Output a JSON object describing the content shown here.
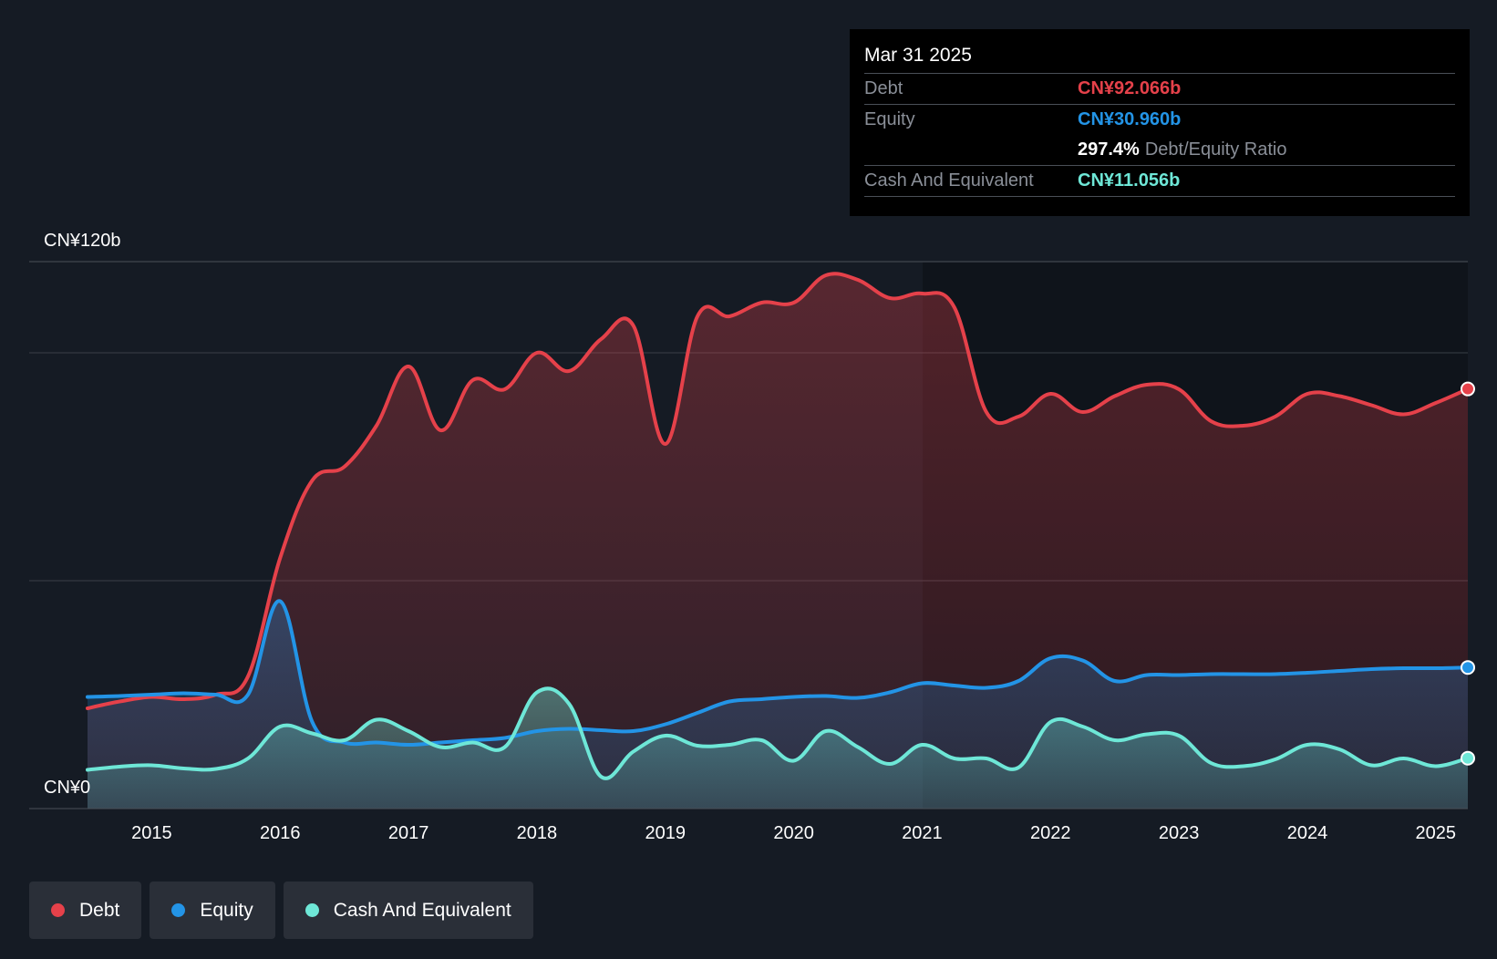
{
  "colors": {
    "debt": "#e5414a",
    "equity": "#2394e6",
    "cash": "#6ee7d7",
    "background": "#151b24",
    "grid": "#3a3f47"
  },
  "tooltip": {
    "date": "Mar 31 2025",
    "debt_label": "Debt",
    "debt_value": "CN¥92.066b",
    "equity_label": "Equity",
    "equity_value": "CN¥30.960b",
    "ratio_value": "297.4%",
    "ratio_label": "Debt/Equity Ratio",
    "cash_label": "Cash And Equivalent",
    "cash_value": "CN¥11.056b"
  },
  "legend": {
    "debt": "Debt",
    "equity": "Equity",
    "cash": "Cash And Equivalent"
  },
  "chart_data": {
    "type": "area",
    "title": "",
    "y_top_label": "CN¥120b",
    "y_bottom_label": "CN¥0",
    "ylim": [
      0,
      120
    ],
    "xlim": [
      2014.5,
      2025.25
    ],
    "x_ticks": [
      2015,
      2016,
      2017,
      2018,
      2019,
      2020,
      2021,
      2022,
      2023,
      2024,
      2025
    ],
    "x_tick_labels": [
      "2015",
      "2016",
      "2017",
      "2018",
      "2019",
      "2020",
      "2021",
      "2022",
      "2023",
      "2024",
      "2025"
    ],
    "gridlines": [
      120,
      100,
      50
    ],
    "series": [
      {
        "name": "Debt",
        "key": "debt",
        "points": [
          [
            2014.5,
            22.0
          ],
          [
            2014.75,
            23.5
          ],
          [
            2015.0,
            24.5
          ],
          [
            2015.25,
            24.0
          ],
          [
            2015.5,
            25.0
          ],
          [
            2015.75,
            29.0
          ],
          [
            2016.0,
            55.0
          ],
          [
            2016.25,
            72.0
          ],
          [
            2016.5,
            75.0
          ],
          [
            2016.75,
            84.0
          ],
          [
            2017.0,
            97.0
          ],
          [
            2017.25,
            83.0
          ],
          [
            2017.5,
            94.0
          ],
          [
            2017.75,
            92.0
          ],
          [
            2018.0,
            100.0
          ],
          [
            2018.25,
            96.0
          ],
          [
            2018.5,
            103.0
          ],
          [
            2018.75,
            106.0
          ],
          [
            2019.0,
            80.0
          ],
          [
            2019.25,
            108.0
          ],
          [
            2019.5,
            108.0
          ],
          [
            2019.75,
            111.0
          ],
          [
            2020.0,
            111.0
          ],
          [
            2020.25,
            117.0
          ],
          [
            2020.5,
            116.0
          ],
          [
            2020.75,
            112.0
          ],
          [
            2021.0,
            113.0
          ],
          [
            2021.25,
            110.0
          ],
          [
            2021.5,
            87.0
          ],
          [
            2021.75,
            86.0
          ],
          [
            2022.0,
            91.0
          ],
          [
            2022.25,
            87.0
          ],
          [
            2022.5,
            90.5
          ],
          [
            2022.75,
            93.0
          ],
          [
            2023.0,
            92.0
          ],
          [
            2023.25,
            85.0
          ],
          [
            2023.5,
            84.0
          ],
          [
            2023.75,
            86.0
          ],
          [
            2024.0,
            91.0
          ],
          [
            2024.25,
            90.5
          ],
          [
            2024.5,
            88.5
          ],
          [
            2024.75,
            86.5
          ],
          [
            2025.0,
            89.0
          ],
          [
            2025.25,
            92.066
          ]
        ]
      },
      {
        "name": "Equity",
        "key": "equity",
        "points": [
          [
            2014.5,
            24.5
          ],
          [
            2014.75,
            24.7
          ],
          [
            2015.0,
            25.0
          ],
          [
            2015.25,
            25.3
          ],
          [
            2015.5,
            25.0
          ],
          [
            2015.75,
            25.0
          ],
          [
            2016.0,
            45.5
          ],
          [
            2016.25,
            19.0
          ],
          [
            2016.5,
            14.5
          ],
          [
            2016.75,
            14.5
          ],
          [
            2017.0,
            14.0
          ],
          [
            2017.25,
            14.5
          ],
          [
            2017.5,
            15.0
          ],
          [
            2017.75,
            15.5
          ],
          [
            2018.0,
            17.0
          ],
          [
            2018.25,
            17.5
          ],
          [
            2018.5,
            17.2
          ],
          [
            2018.75,
            17.0
          ],
          [
            2019.0,
            18.5
          ],
          [
            2019.25,
            21.0
          ],
          [
            2019.5,
            23.5
          ],
          [
            2019.75,
            24.0
          ],
          [
            2020.0,
            24.5
          ],
          [
            2020.25,
            24.7
          ],
          [
            2020.5,
            24.3
          ],
          [
            2020.75,
            25.5
          ],
          [
            2021.0,
            27.5
          ],
          [
            2021.25,
            27.0
          ],
          [
            2021.5,
            26.5
          ],
          [
            2021.75,
            28.0
          ],
          [
            2022.0,
            33.0
          ],
          [
            2022.25,
            32.5
          ],
          [
            2022.5,
            28.0
          ],
          [
            2022.75,
            29.3
          ],
          [
            2023.0,
            29.3
          ],
          [
            2023.25,
            29.5
          ],
          [
            2023.5,
            29.5
          ],
          [
            2023.75,
            29.5
          ],
          [
            2024.0,
            29.8
          ],
          [
            2024.25,
            30.2
          ],
          [
            2024.5,
            30.6
          ],
          [
            2024.75,
            30.8
          ],
          [
            2025.0,
            30.8
          ],
          [
            2025.25,
            30.96
          ]
        ]
      },
      {
        "name": "Cash And Equivalent",
        "key": "cash",
        "points": [
          [
            2014.5,
            8.5
          ],
          [
            2014.75,
            9.2
          ],
          [
            2015.0,
            9.5
          ],
          [
            2015.25,
            8.8
          ],
          [
            2015.5,
            8.7
          ],
          [
            2015.75,
            11.0
          ],
          [
            2016.0,
            18.0
          ],
          [
            2016.25,
            16.5
          ],
          [
            2016.5,
            15.0
          ],
          [
            2016.75,
            19.5
          ],
          [
            2017.0,
            17.0
          ],
          [
            2017.25,
            13.5
          ],
          [
            2017.5,
            14.5
          ],
          [
            2017.75,
            13.5
          ],
          [
            2018.0,
            25.5
          ],
          [
            2018.25,
            23.0
          ],
          [
            2018.5,
            7.0
          ],
          [
            2018.75,
            12.5
          ],
          [
            2019.0,
            16.0
          ],
          [
            2019.25,
            13.8
          ],
          [
            2019.5,
            14.0
          ],
          [
            2019.75,
            15.0
          ],
          [
            2020.0,
            10.5
          ],
          [
            2020.25,
            17.0
          ],
          [
            2020.5,
            13.5
          ],
          [
            2020.75,
            9.8
          ],
          [
            2021.0,
            14.0
          ],
          [
            2021.25,
            11.0
          ],
          [
            2021.5,
            11.0
          ],
          [
            2021.75,
            9.0
          ],
          [
            2022.0,
            19.0
          ],
          [
            2022.25,
            18.0
          ],
          [
            2022.5,
            15.0
          ],
          [
            2022.75,
            16.3
          ],
          [
            2023.0,
            16.0
          ],
          [
            2023.25,
            10.0
          ],
          [
            2023.5,
            9.3
          ],
          [
            2023.75,
            10.8
          ],
          [
            2024.0,
            14.0
          ],
          [
            2024.25,
            13.0
          ],
          [
            2024.5,
            9.5
          ],
          [
            2024.75,
            11.0
          ],
          [
            2025.0,
            9.3
          ],
          [
            2025.25,
            11.056
          ]
        ]
      }
    ]
  }
}
